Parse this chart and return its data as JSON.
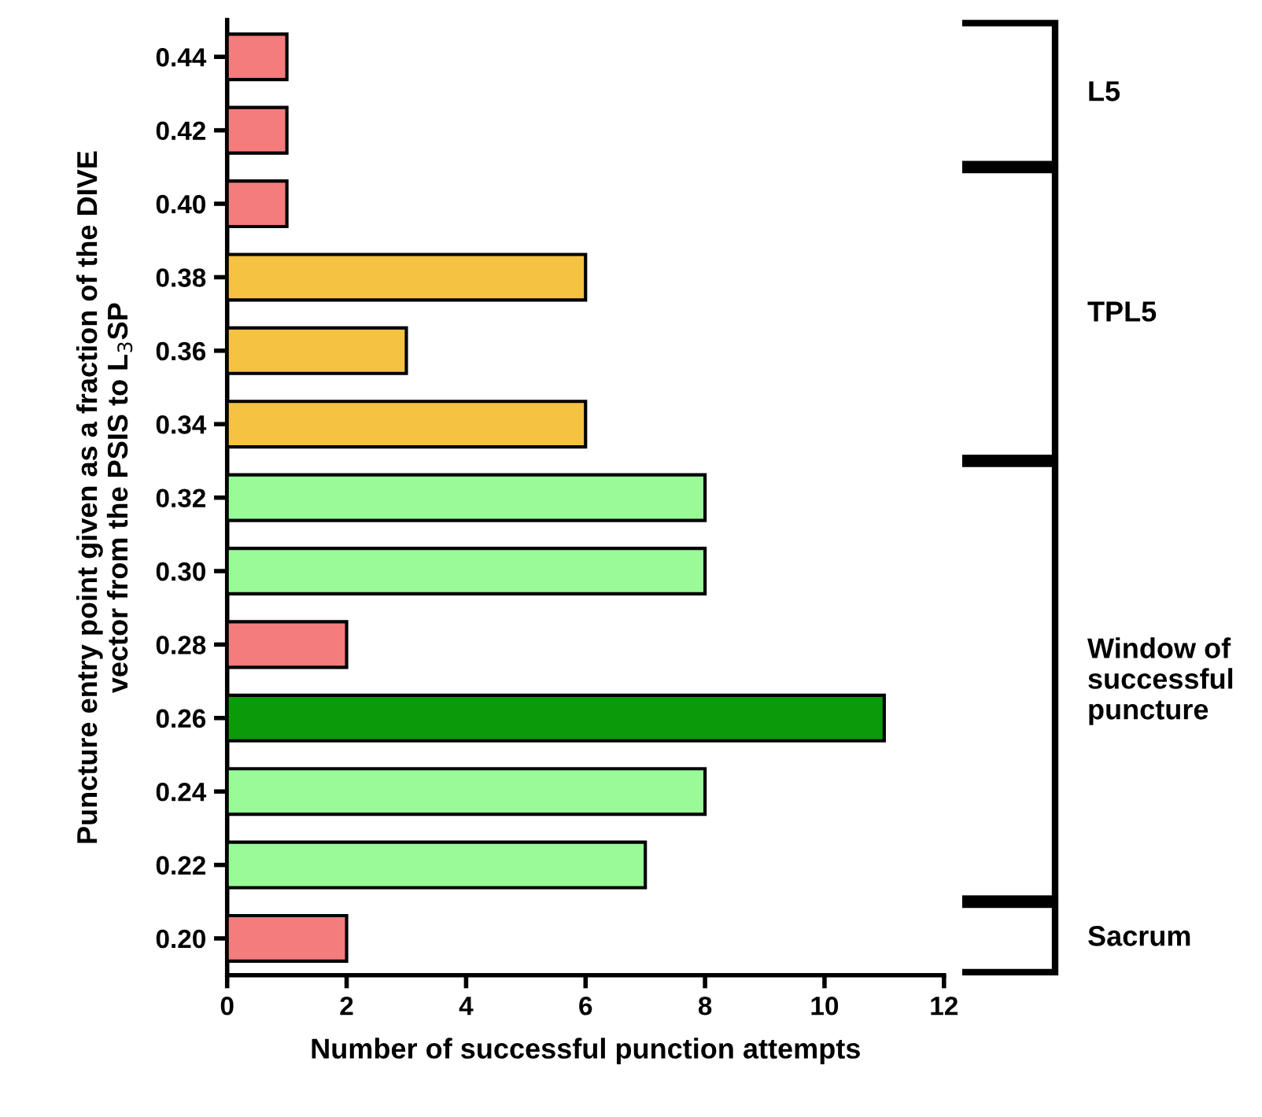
{
  "chart_data": {
    "type": "bar",
    "orientation": "horizontal",
    "xlabel": "Number of successful punction attempts",
    "ylabel": "Puncture entry point given as a fraction of the DIVE\nvector from the PSIS to L$_{3}$SP",
    "categories": [
      "0.44",
      "0.42",
      "0.40",
      "0.38",
      "0.36",
      "0.34",
      "0.32",
      "0.30",
      "0.28",
      "0.26",
      "0.24",
      "0.22",
      "0.20"
    ],
    "values": [
      1,
      1,
      1,
      6,
      3,
      6,
      8,
      8,
      2,
      11,
      8,
      7,
      2
    ],
    "colors": [
      "#f47c7c",
      "#f47c7c",
      "#f47c7c",
      "#f5c242",
      "#f5c242",
      "#f5c242",
      "#98fb98",
      "#98fb98",
      "#f47c7c",
      "#0a9a0a",
      "#98fb98",
      "#98fb98",
      "#f47c7c"
    ],
    "xlim": [
      0,
      12
    ],
    "xticks": [
      0,
      2,
      4,
      6,
      8,
      10,
      12
    ],
    "grid": false,
    "legend": false,
    "annotations": [
      "L5",
      "TPL5",
      "Window of\nsuccessful\npuncture",
      "Sacrum"
    ]
  }
}
